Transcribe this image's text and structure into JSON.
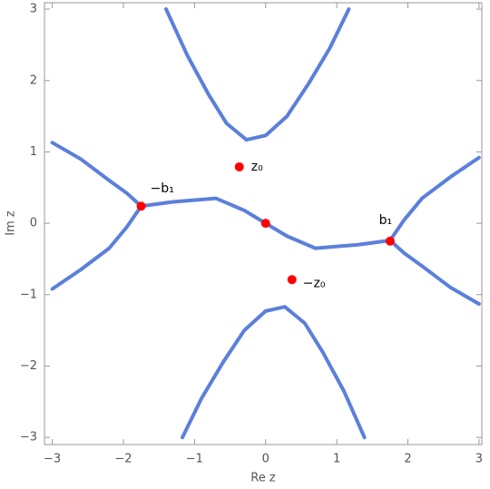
{
  "chart_data": {
    "type": "line",
    "xlabel": "Re z",
    "ylabel": "Im z",
    "xlim": [
      -3.11,
      3.04
    ],
    "ylim": [
      -3.1,
      3.09
    ],
    "xticks": [
      {
        "value": -3,
        "label": "−3"
      },
      {
        "value": -2,
        "label": "−2"
      },
      {
        "value": -1,
        "label": "−1"
      },
      0,
      1,
      2,
      3
    ],
    "yticks": [
      {
        "value": -3,
        "label": "−3"
      },
      {
        "value": -2,
        "label": "−2"
      },
      {
        "value": -1,
        "label": "−1"
      },
      0,
      1,
      2,
      3
    ],
    "series": [
      {
        "color": "#5b7fdb",
        "x": [
          -1.4,
          -1.1,
          -0.8,
          -0.55,
          -0.27,
          0.0,
          0.3,
          0.6,
          0.9,
          1.17
        ],
        "values": [
          3.0,
          2.35,
          1.8,
          1.4,
          1.17,
          1.23,
          1.5,
          1.95,
          2.45,
          3.0
        ]
      },
      {
        "color": "#5b7fdb",
        "x": [
          -1.17,
          -0.9,
          -0.6,
          -0.3,
          0.0,
          0.27,
          0.55,
          0.8,
          1.1,
          1.39
        ],
        "values": [
          -3.0,
          -2.45,
          -1.95,
          -1.5,
          -1.23,
          -1.17,
          -1.4,
          -1.8,
          -2.35,
          -3.0
        ]
      },
      {
        "color": "#5b7fdb",
        "x": [
          -3.0,
          -2.6,
          -2.2,
          -1.95,
          -1.75
        ],
        "values": [
          1.13,
          0.9,
          0.6,
          0.42,
          0.24
        ]
      },
      {
        "color": "#5b7fdb",
        "x": [
          -1.75,
          -1.95,
          -2.2,
          -2.6,
          -3.0
        ],
        "values": [
          0.24,
          -0.05,
          -0.35,
          -0.65,
          -0.92
        ]
      },
      {
        "color": "#5b7fdb",
        "x": [
          3.0,
          2.6,
          2.2,
          1.95,
          1.75
        ],
        "values": [
          -1.13,
          -0.9,
          -0.6,
          -0.42,
          -0.24
        ]
      },
      {
        "color": "#5b7fdb",
        "x": [
          1.75,
          1.95,
          2.2,
          2.6,
          3.0
        ],
        "values": [
          -0.24,
          0.05,
          0.35,
          0.65,
          0.92
        ]
      },
      {
        "color": "#5b7fdb",
        "x": [
          -1.75,
          -1.3,
          -0.7,
          -0.3,
          0.0,
          0.3,
          0.7,
          1.3,
          1.75
        ],
        "values": [
          0.24,
          0.3,
          0.35,
          0.18,
          0.0,
          -0.18,
          -0.35,
          -0.3,
          -0.24
        ]
      }
    ],
    "points": {
      "color": "#ff0000",
      "x": [
        -1.75,
        -0.37,
        0.0,
        1.75,
        0.37
      ],
      "values": [
        0.24,
        0.79,
        0.0,
        -0.25,
        -0.79
      ],
      "labels": [
        "−b₁",
        "z₀",
        null,
        "b₁",
        "−z₀"
      ]
    }
  }
}
